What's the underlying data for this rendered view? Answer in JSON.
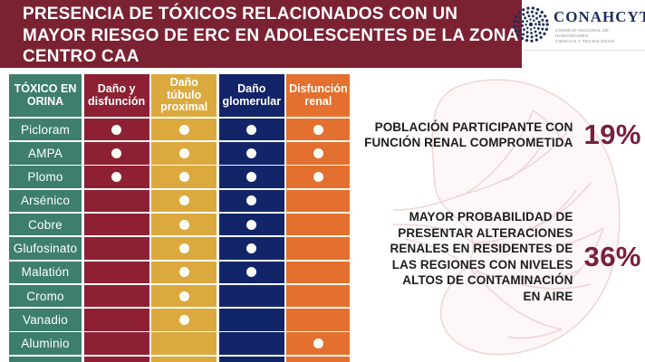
{
  "title_lines": [
    "PRESENCIA DE TÓXICOS RELACIONADOS CON UN",
    "MAYOR RIESGO DE ERC EN ADOLESCENTES DE LA ZONA",
    "CENTRO CAA"
  ],
  "logo": {
    "name": "CONAHCYT",
    "subtitle_line1": "CONSEJO NACIONAL DE HUMANIDADES",
    "subtitle_line2": "CIENCIAS Y TECNOLOGÍAS"
  },
  "table": {
    "columns": [
      {
        "label": "TÓXICO EN ORINA",
        "color": "#3d7e6d"
      },
      {
        "label": "Daño y disfunción",
        "color": "#8d2133"
      },
      {
        "label": "Daño túbulo proximal",
        "color": "#dba93e"
      },
      {
        "label": "Daño glomerular",
        "color": "#132569"
      },
      {
        "label": "Disfunción renal",
        "color": "#e3702e"
      }
    ],
    "rows": [
      {
        "toxico": "Picloram",
        "marks": [
          true,
          true,
          true,
          true
        ]
      },
      {
        "toxico": "AMPA",
        "marks": [
          true,
          true,
          true,
          true
        ]
      },
      {
        "toxico": "Plomo",
        "marks": [
          true,
          true,
          true,
          true
        ]
      },
      {
        "toxico": "Arsénico",
        "marks": [
          false,
          true,
          true,
          false
        ]
      },
      {
        "toxico": "Cobre",
        "marks": [
          false,
          true,
          true,
          false
        ]
      },
      {
        "toxico": "Glufosinato",
        "marks": [
          false,
          true,
          true,
          false
        ]
      },
      {
        "toxico": "Malatión",
        "marks": [
          false,
          true,
          true,
          false
        ]
      },
      {
        "toxico": "Cromo",
        "marks": [
          false,
          true,
          false,
          false
        ]
      },
      {
        "toxico": "Vanadio",
        "marks": [
          false,
          true,
          false,
          false
        ]
      },
      {
        "toxico": "Aluminio",
        "marks": [
          false,
          false,
          false,
          true
        ]
      }
    ]
  },
  "stats": [
    {
      "text": "POBLACIÓN PARTICIPANTE CON FUNCIÓN RENAL COMPROMETIDA",
      "value": "19%"
    },
    {
      "text": "MAYOR PROBABILIDAD DE PRESENTAR ALTERACIONES RENALES EN LAS REGIONES CON NIVELES ALTOS DE CONTAMINACIÓN EN AIRE",
      "value": "36%",
      "text_lines": [
        "MAYOR PROBABILIDAD DE",
        "PRESENTAR ALTERACIONES",
        "RENALES EN RESIDENTES DE",
        "LAS REGIONES CON NIVELES",
        "ALTOS DE CONTAMINACIÓN",
        "EN AIRE"
      ]
    }
  ],
  "colors": {
    "banner": "#7b2232",
    "accent_percent": "#77203f",
    "logo_navy": "#1e2d5c",
    "dot": "#fdfdf6"
  }
}
